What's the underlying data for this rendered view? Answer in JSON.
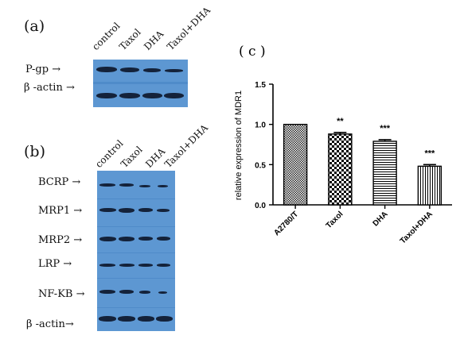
{
  "panel_a": {
    "label": "(a)",
    "lanes": [
      "control",
      "Taxol",
      "DHA",
      "Taxol+DHA"
    ],
    "rows": [
      "P-gp  →",
      "β -actin  →"
    ]
  },
  "panel_b": {
    "label": "(b)",
    "lanes": [
      "control",
      "Taxol",
      "DHA",
      "Taxol+DHA"
    ],
    "rows": [
      "BCRP  →",
      "MRP1  →",
      "MRP2  →",
      "LRP  →",
      "NF-KB  →",
      "β -actin→"
    ]
  },
  "panel_c": {
    "label": "( c )"
  },
  "chart_data": {
    "type": "bar",
    "categories": [
      "A2780/T",
      "Taxol",
      "DHA",
      "Taxol+DHA"
    ],
    "values": [
      1.0,
      0.88,
      0.79,
      0.48
    ],
    "errors": [
      0.0,
      0.02,
      0.02,
      0.02
    ],
    "significance": [
      "",
      "**",
      "***",
      "***"
    ],
    "ylabel": "relative expression of MDR1",
    "xlabel": "",
    "ylim": [
      0,
      1.5
    ],
    "yticks": [
      "0.0",
      "0.5",
      "1.0",
      "1.5"
    ],
    "patterns": [
      "crosshatch-dense",
      "checkerboard",
      "horizontal-lines",
      "vertical-lines"
    ],
    "colors": {
      "bar_fill": "#ffffff",
      "bar_stroke": "#000000",
      "axis": "#000000"
    }
  }
}
